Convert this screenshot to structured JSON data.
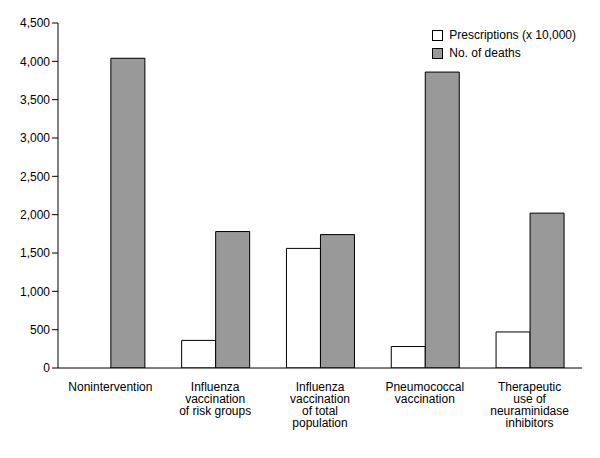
{
  "chart_data": {
    "type": "bar",
    "categories": [
      "Nonintervention",
      "Influenza vaccination of risk groups",
      "Influenza vaccination of total population",
      "Pneumococcal vaccination",
      "Therapeutic use of neuraminidase inhibitors"
    ],
    "series": [
      {
        "name": "Prescriptions (x 10,000)",
        "color": "#ffffff",
        "values": [
          null,
          360,
          1560,
          280,
          470
        ]
      },
      {
        "name": "No. of deaths",
        "color": "#999999",
        "values": [
          4040,
          1780,
          1740,
          3860,
          2020
        ]
      }
    ],
    "ylim": [
      0,
      4500
    ],
    "yticks": [
      0,
      500,
      {
        "value": 1000,
        "label": "1,000"
      },
      {
        "value": 1500,
        "label": "1,500"
      },
      {
        "value": 2000,
        "label": "2,000"
      },
      {
        "value": 2500,
        "label": "2,500"
      },
      {
        "value": 3000,
        "label": "3,000"
      },
      {
        "value": 3500,
        "label": "3,500"
      },
      {
        "value": 4000,
        "label": "4,000"
      },
      {
        "value": 4500,
        "label": "4,500"
      }
    ],
    "grid": false,
    "legend": "upper right"
  }
}
